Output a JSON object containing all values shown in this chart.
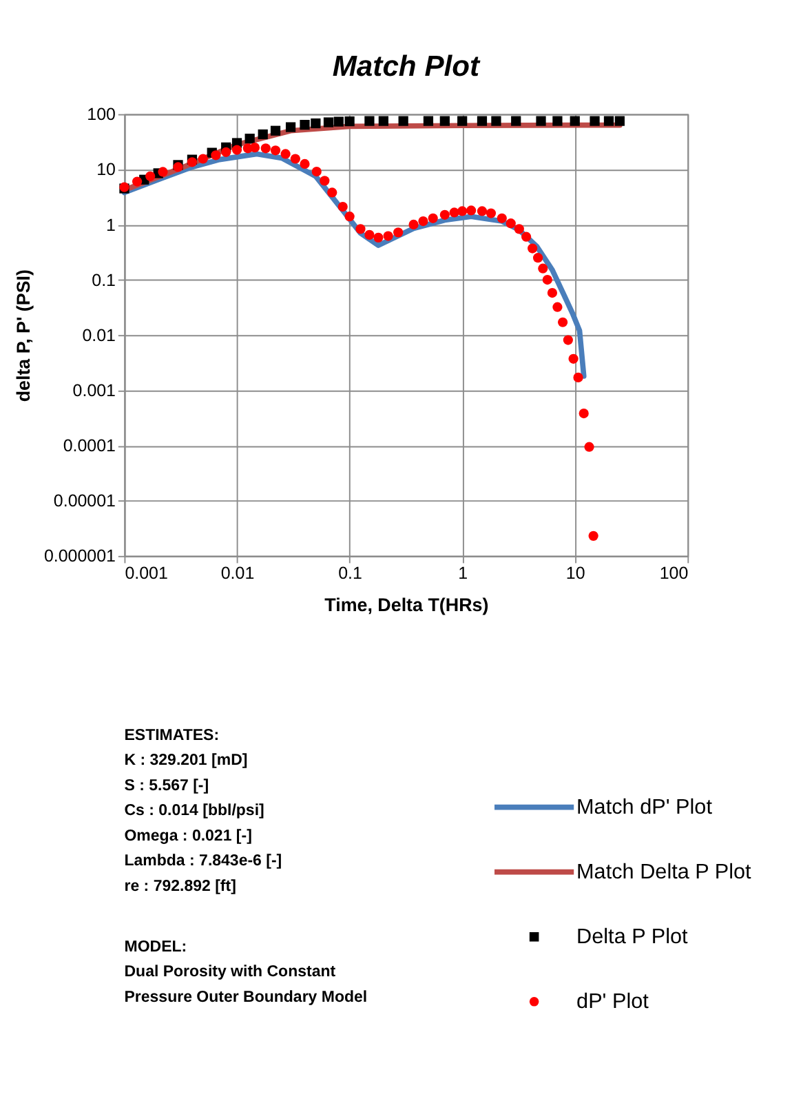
{
  "chart_data": {
    "type": "line",
    "title": "Match Plot",
    "xlabel": "Time, Delta T(HRs)",
    "ylabel": "delta P, P' (PSI)",
    "log": "xy",
    "grid": true,
    "legend": "bottom right",
    "xlim": [
      0.001,
      100
    ],
    "xticks": [
      0.001,
      0.01,
      0.1,
      1,
      10,
      100
    ],
    "ylim": [
      1e-06,
      100
    ],
    "yticks": [
      100,
      10,
      1,
      0.1,
      0.01,
      0.001,
      0.0001,
      {
        "value": 1e-05,
        "label": "0.00001"
      },
      {
        "value": 1e-06,
        "label": "0.000001"
      }
    ],
    "series": [
      {
        "name": "Match dP' Plot",
        "type": "line",
        "line_style": "solid",
        "color": "#4a7ebb",
        "x": [
          0.001,
          0.002,
          0.004,
          0.007,
          0.015,
          0.025,
          0.05,
          0.087,
          0.125,
          0.18,
          0.37,
          0.7,
          1.2,
          2.25,
          3.2,
          4.6,
          6.3,
          8,
          9.5,
          11,
          12
        ],
        "values": [
          3.8,
          6.5,
          11,
          15,
          19,
          16,
          7.5,
          1.8,
          0.7,
          0.42,
          0.85,
          1.2,
          1.4,
          1.15,
          0.8,
          0.4,
          0.15,
          0.053,
          0.025,
          0.012,
          0.0018
        ]
      },
      {
        "name": "Match Delta P Plot",
        "type": "line",
        "line_style": "solid",
        "color": "#be4b48",
        "x": [
          0.001,
          0.003,
          0.01,
          0.03,
          0.1,
          1,
          10,
          25
        ],
        "values": [
          4.2,
          10,
          28,
          50,
          60,
          62,
          63,
          63
        ]
      },
      {
        "name": "Delta P Plot",
        "type": "scatter",
        "marker": "square",
        "color": "#000000",
        "x": [
          0.001,
          0.0015,
          0.002,
          0.003,
          0.004,
          0.006,
          0.008,
          0.01,
          0.013,
          0.017,
          0.022,
          0.03,
          0.04,
          0.05,
          0.065,
          0.08,
          0.1,
          0.15,
          0.2,
          0.3,
          0.5,
          0.7,
          1,
          1.5,
          2,
          3,
          5,
          7,
          10,
          15,
          20,
          25
        ],
        "values": [
          4.5,
          6.5,
          8.5,
          12,
          15,
          20,
          25,
          30,
          36,
          43,
          50,
          58,
          64,
          68,
          71,
          73,
          74,
          75,
          75,
          75,
          75,
          75,
          75,
          75,
          75,
          75,
          75,
          75,
          75,
          75,
          75,
          75
        ]
      },
      {
        "name": "dP' Plot",
        "type": "scatter",
        "marker": "circle",
        "color": "#ff0000",
        "x": [
          0.001,
          0.0013,
          0.0017,
          0.0022,
          0.003,
          0.004,
          0.005,
          0.0065,
          0.008,
          0.01,
          0.0125,
          0.0144,
          0.018,
          0.022,
          0.027,
          0.033,
          0.04,
          0.051,
          0.06,
          0.07,
          0.087,
          0.1,
          0.125,
          0.15,
          0.18,
          0.22,
          0.27,
          0.37,
          0.45,
          0.55,
          0.7,
          0.85,
          1,
          1.2,
          1.5,
          1.8,
          2.25,
          2.7,
          3.2,
          3.7,
          4.2,
          4.7,
          5.2,
          5.7,
          6.3,
          7,
          7.8,
          8.7,
          9.7,
          10.7,
          12,
          13.4,
          14.6
        ],
        "values": [
          4.75,
          6,
          7.5,
          9,
          11,
          13.5,
          15.5,
          18,
          20.5,
          22.5,
          24,
          24.8,
          24,
          22,
          19,
          15.5,
          12.5,
          9.1,
          6.2,
          3.8,
          2.1,
          1.4,
          0.83,
          0.65,
          0.58,
          0.62,
          0.72,
          1.0,
          1.15,
          1.3,
          1.5,
          1.65,
          1.75,
          1.8,
          1.75,
          1.6,
          1.3,
          1.05,
          0.83,
          0.6,
          0.37,
          0.25,
          0.16,
          0.1,
          0.058,
          0.032,
          0.017,
          0.0081,
          0.0037,
          0.0017,
          0.00038,
          9.4e-05,
          2.3e-06
        ]
      }
    ],
    "annotations": [
      "ESTIMATES:\nK : 329.201 [mD]\nS : 5.567 [-]\nCs : 0.014 [bbl/psi]\nOmega : 0.021 [-]\nLambda : 7.843e-6 [-]\nre : 792.892 [ft]",
      "MODEL:\nDual Porosity with Constant\nPressure Outer Boundary Model"
    ]
  }
}
